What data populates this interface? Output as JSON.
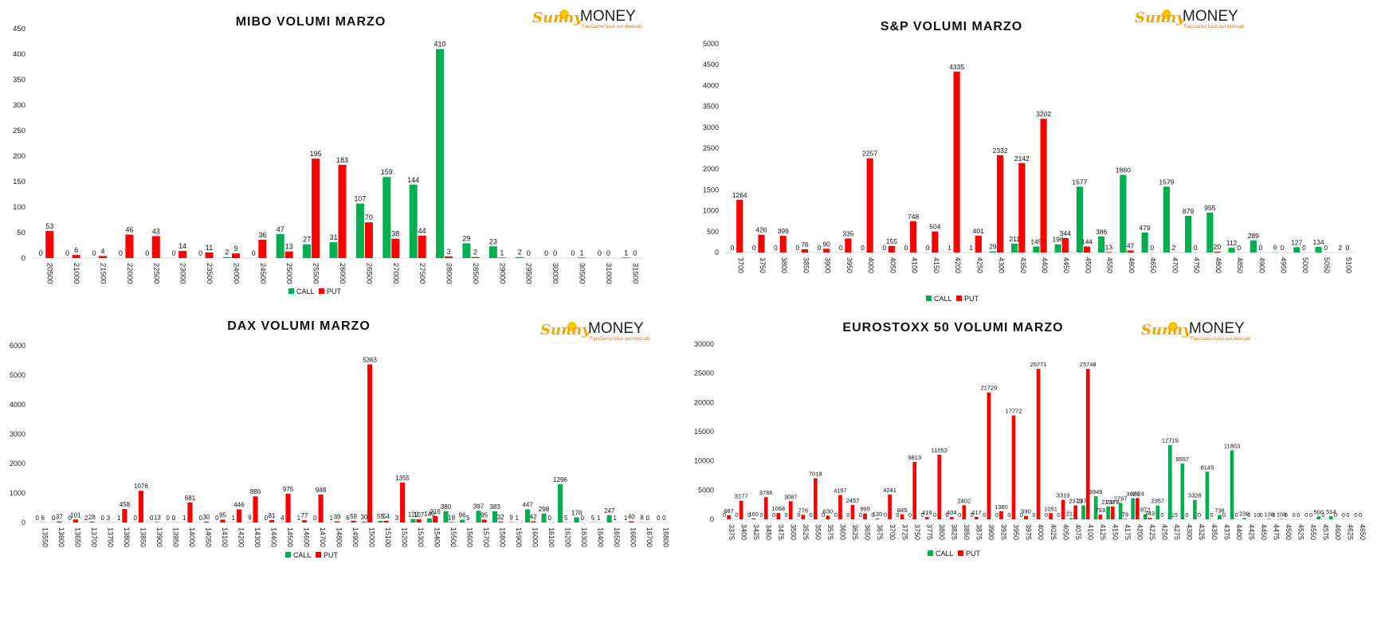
{
  "brand": {
    "sunny": "Sunny",
    "money": "MONEY",
    "tagline": "Facciamo luce sui mercati"
  },
  "legend": {
    "call": "CALL",
    "put": "PUT"
  },
  "colors": {
    "call": "#00b050",
    "put": "#ff0000"
  },
  "chart_data": [
    {
      "type": "bar",
      "title": "MIBO VOLUMI MARZO",
      "xlabel": "",
      "ylabel": "",
      "ylim": [
        0,
        450
      ],
      "yticks": [
        0,
        50,
        100,
        150,
        200,
        250,
        300,
        350,
        400,
        450
      ],
      "categories": [
        "20500",
        "21000",
        "21500",
        "22000",
        "22500",
        "23000",
        "23500",
        "24000",
        "24500",
        "25000",
        "25500",
        "26000",
        "26500",
        "27000",
        "27500",
        "28000",
        "28500",
        "29000",
        "29500",
        "30000",
        "30500",
        "31000",
        "31500"
      ],
      "series": [
        {
          "name": "CALL",
          "values": [
            0,
            0,
            0,
            0,
            0,
            0,
            0,
            2,
            0,
            47,
            27,
            31,
            107,
            159,
            144,
            410,
            29,
            23,
            2,
            0,
            0,
            0,
            1
          ]
        },
        {
          "name": "PUT",
          "values": [
            53,
            6,
            4,
            46,
            43,
            14,
            11,
            9,
            36,
            13,
            195,
            183,
            70,
            38,
            44,
            3,
            2,
            1,
            0,
            0,
            1,
            0,
            0
          ]
        }
      ],
      "grid": false,
      "legend": "bottom"
    },
    {
      "type": "bar",
      "title": "S&P VOLUMI MARZO",
      "xlabel": "",
      "ylabel": "",
      "ylim": [
        0,
        5000
      ],
      "yticks": [
        0,
        500,
        1000,
        1500,
        2000,
        2500,
        3000,
        3500,
        4000,
        4500,
        5000
      ],
      "categories": [
        "3700",
        "3750",
        "3800",
        "3850",
        "3900",
        "3950",
        "4000",
        "4050",
        "4100",
        "4150",
        "4200",
        "4250",
        "4300",
        "4350",
        "4400",
        "4450",
        "4500",
        "4550",
        "4600",
        "4650",
        "4700",
        "4750",
        "4800",
        "4850",
        "4900",
        "4950",
        "5000",
        "5050",
        "5100"
      ],
      "series": [
        {
          "name": "CALL",
          "values": [
            0,
            0,
            0,
            0,
            0,
            0,
            0,
            0,
            0,
            0,
            1,
            1,
            29,
            211,
            145,
            196,
            1577,
            386,
            1860,
            479,
            1579,
            879,
            955,
            112,
            289,
            6,
            127,
            134,
            2
          ]
        },
        {
          "name": "PUT",
          "values": [
            1264,
            426,
            399,
            76,
            90,
            335,
            2257,
            155,
            748,
            504,
            4335,
            401,
            2332,
            2142,
            3202,
            344,
            144,
            13,
            47,
            0,
            2,
            0,
            20,
            0,
            0,
            0,
            0,
            0,
            0
          ]
        }
      ],
      "grid": false,
      "legend": "bottom"
    },
    {
      "type": "bar",
      "title": "DAX VOLUMI MARZO",
      "xlabel": "",
      "ylabel": "",
      "ylim": [
        0,
        6000
      ],
      "yticks": [
        0,
        1000,
        2000,
        3000,
        4000,
        5000,
        6000
      ],
      "categories": [
        "13550",
        "13600",
        "13650",
        "13700",
        "13750",
        "13800",
        "13850",
        "13900",
        "13950",
        "14000",
        "14050",
        "14100",
        "14200",
        "14300",
        "14400",
        "14500",
        "14600",
        "14700",
        "14800",
        "14900",
        "15000",
        "15100",
        "15200",
        "15300",
        "15400",
        "15500",
        "15600",
        "15700",
        "15800",
        "15900",
        "16000",
        "16100",
        "16200",
        "16300",
        "16400",
        "16500",
        "16600",
        "16700",
        "16800"
      ],
      "series": [
        {
          "name": "CALL",
          "values": [
            0,
            0,
            0,
            2,
            0,
            1,
            0,
            0,
            0,
            1,
            0,
            0,
            1,
            9,
            0,
            4,
            1,
            0,
            1,
            6,
            30,
            55,
            3,
            120,
            140,
            380,
            96,
            397,
            383,
            9,
            447,
            298,
            1296,
            176,
            5,
            247,
            1,
            8,
            0
          ]
        },
        {
          "name": "PUT",
          "values": [
            6,
            37,
            101,
            28,
            3,
            458,
            1076,
            13,
            0,
            681,
            30,
            95,
            446,
            886,
            81,
            975,
            77,
            948,
            39,
            59,
            5363,
            54,
            1355,
            107,
            216,
            18,
            5,
            95,
            32,
            1,
            42,
            0,
            5,
            0,
            1,
            1,
            40,
            0,
            0
          ]
        }
      ],
      "grid": false,
      "legend": "bottom"
    },
    {
      "type": "bar",
      "title": "EUROSTOXX 50 VOLUMI MARZO",
      "xlabel": "",
      "ylabel": "",
      "ylim": [
        0,
        30000
      ],
      "yticks": [
        0,
        5000,
        10000,
        15000,
        20000,
        25000,
        30000
      ],
      "categories": [
        "3375",
        "3400",
        "3425",
        "3450",
        "3475",
        "3500",
        "3525",
        "3550",
        "3575",
        "3600",
        "3625",
        "3650",
        "3675",
        "3700",
        "3725",
        "3750",
        "3775",
        "3800",
        "3825",
        "3850",
        "3875",
        "3900",
        "3925",
        "3950",
        "3975",
        "4000",
        "4025",
        "4050",
        "4075",
        "4100",
        "4125",
        "4150",
        "4175",
        "4200",
        "4225",
        "4250",
        "4275",
        "4300",
        "4325",
        "4350",
        "4375",
        "4400",
        "4425",
        "4450",
        "4475",
        "4500",
        "4525",
        "4550",
        "4575",
        "4600",
        "4625",
        "4650"
      ],
      "series": [
        {
          "name": "CALL",
          "values": [
            0,
            0,
            0,
            0,
            0,
            0,
            0,
            0,
            0,
            0,
            0,
            0,
            0,
            0,
            0,
            0,
            0,
            0,
            0,
            0,
            0,
            0,
            0,
            0,
            0,
            0,
            0,
            0,
            212,
            2373,
            3949,
            2178,
            2797,
            3624,
            872,
            2357,
            12719,
            9557,
            3328,
            8145,
            738,
            11803,
            230,
            10,
            100,
            100,
            0,
            0,
            500,
            514,
            0,
            0
          ]
        },
        {
          "name": "PUT",
          "values": [
            687,
            3177,
            160,
            3786,
            1068,
            3087,
            778,
            7018,
            630,
            4157,
            2457,
            995,
            120,
            4241,
            845,
            9813,
            419,
            11052,
            404,
            2402,
            417,
            21729,
            1380,
            17772,
            590,
            25771,
            1051,
            3319,
            2373,
            25748,
            793,
            2178,
            79,
            3624,
            243,
            0,
            15,
            0,
            0,
            0,
            0,
            0,
            0,
            0,
            0,
            0,
            0,
            0,
            0,
            0,
            0,
            0
          ]
        }
      ],
      "grid": false,
      "legend": "bottom"
    }
  ]
}
